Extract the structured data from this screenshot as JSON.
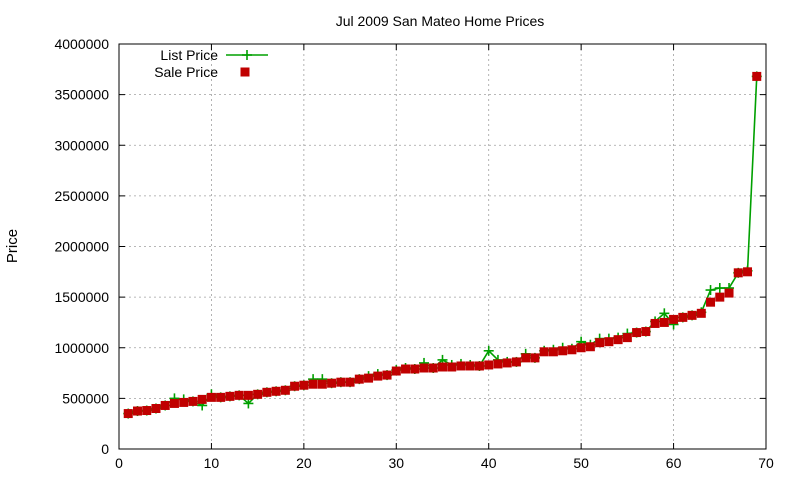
{
  "chart_data": {
    "type": "line",
    "title": "Jul 2009 San Mateo Home Prices",
    "xlabel": "",
    "ylabel": "Price",
    "xlim": [
      0,
      70
    ],
    "ylim": [
      0,
      4000000
    ],
    "xticks": [
      0,
      10,
      20,
      30,
      40,
      50,
      60,
      70
    ],
    "yticks": [
      0,
      500000,
      1000000,
      1500000,
      2000000,
      2500000,
      3000000,
      3500000,
      4000000
    ],
    "xtick_labels": [
      "0",
      "10",
      "20",
      "30",
      "40",
      "50",
      "60",
      "70"
    ],
    "ytick_labels": [
      "0",
      "500000",
      "1000000",
      "1500000",
      "2000000",
      "2500000",
      "3000000",
      "3500000",
      "4000000"
    ],
    "grid": true,
    "legend_position": "top-left",
    "x": [
      1,
      2,
      3,
      4,
      5,
      6,
      7,
      8,
      9,
      10,
      11,
      12,
      13,
      14,
      15,
      16,
      17,
      18,
      19,
      20,
      21,
      22,
      23,
      24,
      25,
      26,
      27,
      28,
      29,
      30,
      31,
      32,
      33,
      34,
      35,
      36,
      37,
      38,
      39,
      40,
      41,
      42,
      43,
      44,
      45,
      46,
      47,
      48,
      49,
      50,
      51,
      52,
      53,
      54,
      55,
      56,
      57,
      58,
      59,
      60,
      61,
      62,
      63,
      64,
      65,
      66,
      67,
      68,
      69
    ],
    "series": [
      {
        "name": "List Price",
        "style": "line-plus",
        "color": "#00a000",
        "values": [
          350000,
          375000,
          380000,
          400000,
          430000,
          500000,
          490000,
          470000,
          430000,
          540000,
          510000,
          520000,
          530000,
          450000,
          540000,
          560000,
          570000,
          580000,
          620000,
          630000,
          690000,
          690000,
          650000,
          660000,
          660000,
          690000,
          720000,
          740000,
          730000,
          780000,
          800000,
          790000,
          850000,
          800000,
          880000,
          830000,
          840000,
          830000,
          820000,
          970000,
          880000,
          860000,
          860000,
          940000,
          900000,
          970000,
          980000,
          1000000,
          990000,
          1060000,
          1030000,
          1090000,
          1090000,
          1100000,
          1140000,
          1150000,
          1160000,
          1260000,
          1340000,
          1230000,
          1300000,
          1320000,
          1350000,
          1570000,
          1590000,
          1590000,
          1740000,
          1760000,
          3680000
        ]
      },
      {
        "name": "Sale Price",
        "style": "square",
        "color": "#c00000",
        "values": [
          350000,
          375000,
          380000,
          400000,
          430000,
          450000,
          460000,
          470000,
          490000,
          510000,
          510000,
          520000,
          530000,
          530000,
          540000,
          560000,
          570000,
          580000,
          620000,
          630000,
          640000,
          640000,
          650000,
          660000,
          660000,
          690000,
          700000,
          720000,
          730000,
          770000,
          790000,
          790000,
          800000,
          800000,
          810000,
          810000,
          820000,
          820000,
          820000,
          830000,
          840000,
          850000,
          860000,
          900000,
          900000,
          960000,
          960000,
          970000,
          980000,
          1000000,
          1010000,
          1050000,
          1060000,
          1080000,
          1100000,
          1150000,
          1160000,
          1240000,
          1250000,
          1280000,
          1300000,
          1320000,
          1340000,
          1450000,
          1500000,
          1540000,
          1740000,
          1750000,
          3680000
        ]
      }
    ]
  }
}
